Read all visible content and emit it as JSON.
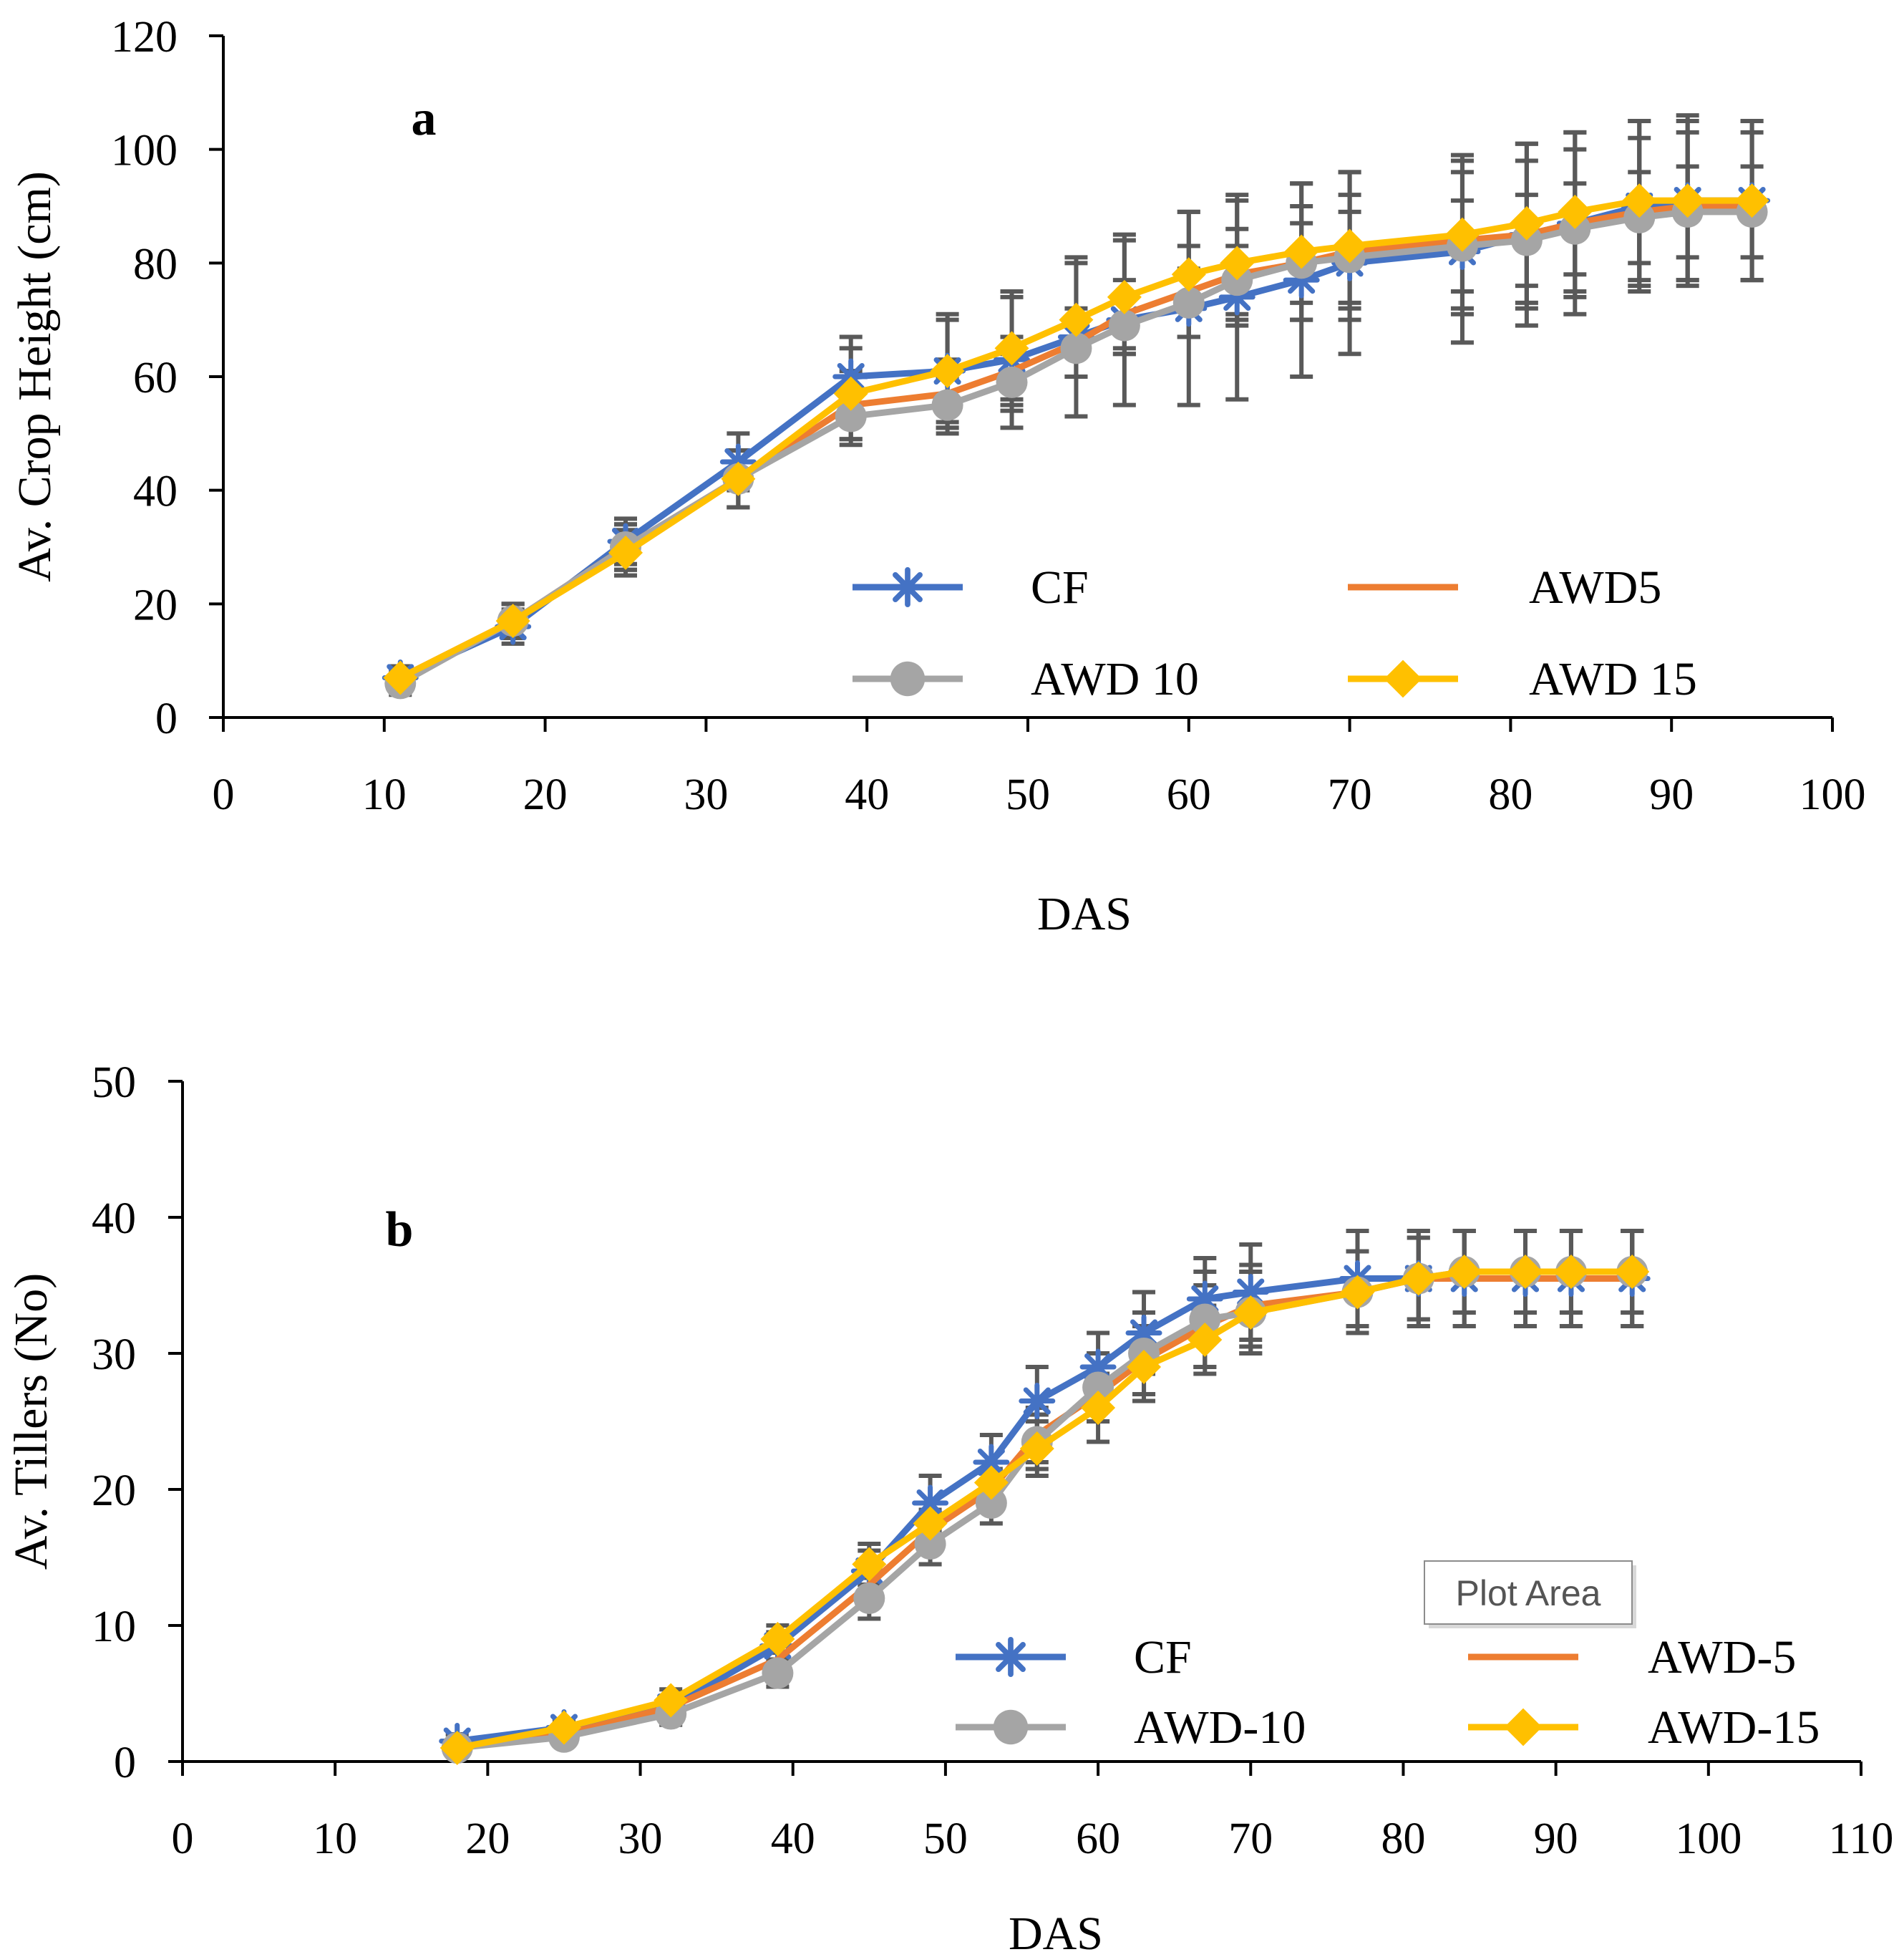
{
  "chart_data": [
    {
      "type": "line",
      "panel_label": "a",
      "xlabel": "DAS",
      "ylabel": "Av. Crop Height (cm)",
      "xlim": [
        0,
        100
      ],
      "ylim": [
        0,
        120
      ],
      "x_ticks": [
        0,
        10,
        20,
        30,
        40,
        50,
        60,
        70,
        80,
        90,
        100
      ],
      "y_ticks": [
        0,
        20,
        40,
        60,
        80,
        100,
        120
      ],
      "x_tick_labels": [
        "0",
        "10",
        "20",
        "30",
        "40",
        "50",
        "60",
        "70",
        "80",
        "90",
        "100"
      ],
      "y_tick_labels": [
        "0",
        "20",
        "40",
        "60",
        "80",
        "100",
        "120"
      ],
      "grid": false,
      "legend_position": "lower-right",
      "x": [
        11,
        18,
        25,
        32,
        39,
        45,
        49,
        53,
        56,
        60,
        63,
        67,
        70,
        77,
        81,
        84,
        88,
        91,
        95
      ],
      "series": [
        {
          "name": "CF",
          "color": "#4472C4",
          "marker": "asterisk",
          "values": [
            7,
            16,
            31,
            45,
            60,
            61,
            63,
            67,
            70,
            72,
            74,
            77,
            80,
            82,
            85,
            87,
            90,
            91,
            91
          ],
          "errors": [
            2,
            3,
            4,
            5,
            7,
            10,
            12,
            14,
            15,
            17,
            18,
            17,
            16,
            16,
            16,
            16,
            15,
            15,
            14
          ]
        },
        {
          "name": "AWD5",
          "color": "#ED7D31",
          "marker": "none",
          "values": [
            7,
            17,
            30,
            42,
            55,
            57,
            61,
            66,
            71,
            75,
            78,
            80,
            82,
            84,
            85,
            87,
            89,
            90,
            90
          ],
          "errors": [
            2,
            3,
            4,
            5,
            6,
            6,
            6,
            6,
            6,
            8,
            8,
            10,
            10,
            12,
            13,
            13,
            13,
            13,
            13
          ]
        },
        {
          "name": "AWD 10",
          "color": "#A5A5A5",
          "marker": "circle",
          "values": [
            6,
            17,
            30,
            42,
            53,
            55,
            59,
            65,
            69,
            73,
            77,
            80,
            81,
            83,
            84,
            86,
            88,
            89,
            89
          ],
          "errors": [
            2,
            3,
            4,
            5,
            5,
            5,
            5,
            5,
            5,
            6,
            6,
            7,
            8,
            8,
            8,
            8,
            8,
            8,
            8
          ]
        },
        {
          "name": "AWD 15",
          "color": "#FFC000",
          "marker": "diamond",
          "values": [
            7,
            17,
            29,
            42,
            57,
            61,
            65,
            70,
            74,
            78,
            80,
            82,
            83,
            85,
            87,
            89,
            91,
            91,
            91
          ],
          "errors": [
            2,
            3,
            4,
            5,
            8,
            9,
            9,
            10,
            10,
            11,
            11,
            12,
            13,
            14,
            14,
            14,
            14,
            14,
            14
          ]
        }
      ]
    },
    {
      "type": "line",
      "panel_label": "b",
      "xlabel": "DAS",
      "ylabel": "Av. Tillers (No)",
      "xlim": [
        0,
        110
      ],
      "ylim": [
        0,
        50
      ],
      "x_ticks": [
        0,
        10,
        20,
        30,
        40,
        50,
        60,
        70,
        80,
        90,
        100,
        110
      ],
      "y_ticks": [
        0,
        10,
        20,
        30,
        40,
        50
      ],
      "x_tick_labels": [
        "0",
        "10",
        "20",
        "30",
        "40",
        "50",
        "60",
        "70",
        "80",
        "90",
        "100",
        "110"
      ],
      "y_tick_labels": [
        "0",
        "10",
        "20",
        "30",
        "40",
        "50"
      ],
      "grid": false,
      "legend_position": "lower-right",
      "tooltip": "Plot Area",
      "x": [
        18,
        25,
        32,
        39,
        45,
        49,
        53,
        56,
        60,
        63,
        67,
        70,
        77,
        81,
        84,
        88,
        91,
        95
      ],
      "series": [
        {
          "name": "CF",
          "color": "#4472C4",
          "marker": "asterisk",
          "values": [
            1.5,
            2.5,
            4,
            8.5,
            14,
            19,
            22,
            26.5,
            29,
            31.5,
            34,
            34.5,
            35.5,
            35.5,
            35.5,
            35.5,
            35.5,
            35.5
          ],
          "errors": [
            0.5,
            0.5,
            0.8,
            1,
            1.5,
            2,
            2,
            2.5,
            2.5,
            3,
            3,
            3.5,
            3.5,
            3.5,
            3.5,
            3.5,
            3.5,
            3.5
          ]
        },
        {
          "name": "AWD-5",
          "color": "#ED7D31",
          "marker": "none",
          "values": [
            1,
            2,
            4,
            7.5,
            13,
            17,
            20,
            24,
            27,
            29.5,
            32,
            33.5,
            34.5,
            35.5,
            35.5,
            35.5,
            35.5,
            35.5
          ],
          "errors": [
            0.5,
            0.5,
            0.8,
            1,
            1.5,
            1.5,
            1.5,
            2,
            2,
            2.5,
            3,
            3,
            3,
            3.5,
            3.5,
            3.5,
            3.5,
            3.5
          ]
        },
        {
          "name": "AWD-10",
          "color": "#A5A5A5",
          "marker": "circle",
          "values": [
            1,
            1.8,
            3.5,
            6.5,
            12,
            16,
            19,
            23.5,
            27.5,
            30,
            32.5,
            33,
            34.5,
            35.5,
            36,
            36,
            36,
            36
          ],
          "errors": [
            0.5,
            0.5,
            0.8,
            1,
            1.5,
            1.5,
            1.5,
            2,
            2.5,
            3,
            3.5,
            3,
            3,
            3,
            3,
            3,
            3,
            3
          ]
        },
        {
          "name": "AWD-15",
          "color": "#FFC000",
          "marker": "diamond",
          "values": [
            1,
            2.5,
            4.5,
            9,
            14.5,
            17.5,
            20.5,
            23,
            26,
            29,
            31,
            33,
            34.5,
            35.5,
            36,
            36,
            36,
            36
          ],
          "errors": [
            0.5,
            0.5,
            0.8,
            1,
            1.5,
            1.5,
            1.5,
            2,
            2.5,
            2.5,
            2.5,
            3,
            3,
            3,
            3,
            3,
            3,
            3
          ]
        }
      ]
    }
  ]
}
